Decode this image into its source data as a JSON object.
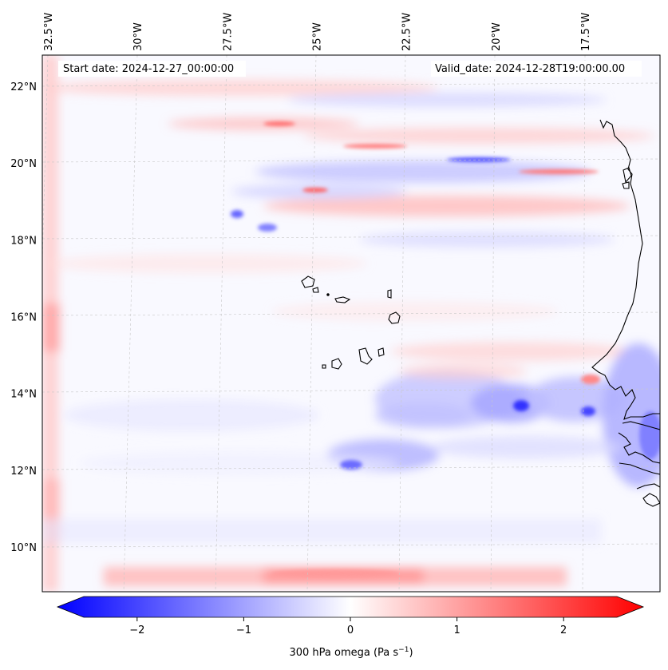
{
  "map": {
    "start_label": "Start date: 2024-12-27_00:00:00",
    "valid_label": "Valid_date: 2024-12-28T19:00:00.00",
    "lon_labels": [
      {
        "text": "32.5°W",
        "lon": -32.5
      },
      {
        "text": "30°W",
        "lon": -30
      },
      {
        "text": "27.5°W",
        "lon": -27.5
      },
      {
        "text": "25°W",
        "lon": -25
      },
      {
        "text": "22.5°W",
        "lon": -22.5
      },
      {
        "text": "20°W",
        "lon": -20
      },
      {
        "text": "17.5°W",
        "lon": -17.5
      }
    ],
    "lat_labels": [
      {
        "text": "22°N",
        "lat": 22
      },
      {
        "text": "20°N",
        "lat": 20
      },
      {
        "text": "18°N",
        "lat": 18
      },
      {
        "text": "16°N",
        "lat": 16
      },
      {
        "text": "14°N",
        "lat": 14
      },
      {
        "text": "12°N",
        "lat": 12
      },
      {
        "text": "10°N",
        "lat": 10
      }
    ],
    "colors": {
      "negative": "#0000ff",
      "positive": "#ff0000",
      "neutral": "#ffffff",
      "coast": "#000000",
      "grid": "#cccccc"
    }
  },
  "colorbar": {
    "label": "300 hPa omega (Pa s",
    "label_sup": "−1",
    "label_end": ")",
    "min": -2.75,
    "max": 2.75,
    "ticks": [
      {
        "text": "−2",
        "value": -2
      },
      {
        "text": "−1",
        "value": -1
      },
      {
        "text": "0",
        "value": 0
      },
      {
        "text": "1",
        "value": 1
      },
      {
        "text": "2",
        "value": 2
      }
    ]
  }
}
